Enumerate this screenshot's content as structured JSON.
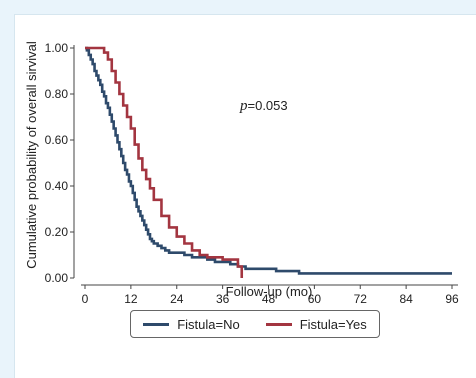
{
  "chart_data": {
    "type": "line",
    "subtype": "kaplan-meier-step",
    "title": "",
    "xlabel": "Follow-up (mo)",
    "ylabel": "Cumulative probability of overall sirvival",
    "xlim": [
      0,
      96
    ],
    "ylim": [
      0,
      1
    ],
    "xticks": [
      "0",
      "12",
      "24",
      "36",
      "48",
      "60",
      "72",
      "84",
      "96"
    ],
    "yticks": [
      "0.00",
      "0.20",
      "0.40",
      "0.60",
      "0.80",
      "1.00"
    ],
    "grid": false,
    "legend_position": "bottom",
    "annotation": {
      "prefix": "p",
      "text": "=0.053"
    },
    "series": [
      {
        "name": "Fistula=No",
        "color": "#2e4a6b",
        "x": [
          0,
          0.5,
          1,
          1.5,
          2,
          2.5,
          3,
          3.5,
          4,
          4.5,
          5,
          5.5,
          6,
          6.5,
          7,
          7.5,
          8,
          8.5,
          9,
          9.5,
          10,
          10.5,
          11,
          11.5,
          12,
          12.5,
          13,
          13.5,
          14,
          14.5,
          15,
          15.5,
          16,
          16.5,
          17,
          17.5,
          18,
          19,
          20,
          21,
          22,
          24,
          26,
          28,
          30,
          32,
          34,
          36,
          38,
          40,
          41,
          42,
          46,
          48,
          50,
          56,
          60,
          72,
          84,
          96
        ],
        "y": [
          1.0,
          0.99,
          0.97,
          0.95,
          0.93,
          0.9,
          0.88,
          0.86,
          0.84,
          0.81,
          0.79,
          0.76,
          0.74,
          0.71,
          0.68,
          0.65,
          0.62,
          0.59,
          0.56,
          0.53,
          0.5,
          0.47,
          0.45,
          0.42,
          0.4,
          0.37,
          0.34,
          0.31,
          0.29,
          0.27,
          0.25,
          0.23,
          0.21,
          0.19,
          0.17,
          0.16,
          0.15,
          0.14,
          0.13,
          0.12,
          0.11,
          0.11,
          0.1,
          0.09,
          0.09,
          0.08,
          0.07,
          0.07,
          0.06,
          0.05,
          0.05,
          0.04,
          0.04,
          0.04,
          0.03,
          0.02,
          0.02,
          0.02,
          0.02,
          0.02
        ]
      },
      {
        "name": "Fistula=Yes",
        "color": "#a33540",
        "x": [
          0,
          5,
          6,
          7,
          8,
          9,
          10,
          11,
          12,
          13,
          14,
          15,
          16,
          17,
          18,
          20,
          22,
          24,
          26,
          28,
          30,
          32,
          36,
          40,
          41
        ],
        "y": [
          1.0,
          0.98,
          0.95,
          0.9,
          0.85,
          0.8,
          0.75,
          0.7,
          0.65,
          0.58,
          0.52,
          0.47,
          0.43,
          0.39,
          0.34,
          0.27,
          0.22,
          0.18,
          0.15,
          0.12,
          0.1,
          0.09,
          0.08,
          0.05,
          0.0
        ]
      }
    ]
  }
}
